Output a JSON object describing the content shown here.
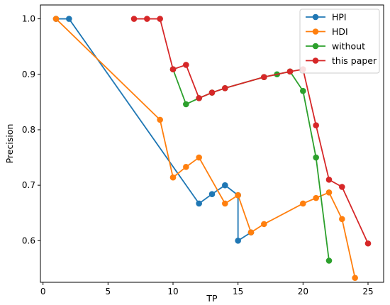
{
  "chart_data": {
    "type": "line",
    "xlabel": "TP",
    "ylabel": "Precision",
    "xlim": [
      -0.2,
      26.2
    ],
    "ylim": [
      0.525,
      1.025
    ],
    "xticks": [
      0,
      5,
      10,
      15,
      20,
      25
    ],
    "yticks": [
      0.6,
      0.7,
      0.8,
      0.9,
      1.0
    ],
    "ytick_labels": [
      "0.6",
      "0.7",
      "0.8",
      "0.9",
      "1.0"
    ],
    "grid": false,
    "legend_position": "top-right",
    "series": [
      {
        "name": "HPI",
        "color": "#1f77b4",
        "points": [
          [
            1,
            1.0
          ],
          [
            2,
            1.0
          ],
          [
            12,
            0.667
          ],
          [
            13,
            0.684
          ],
          [
            14,
            0.7
          ],
          [
            15,
            0.682
          ],
          [
            15,
            0.6
          ],
          [
            16,
            0.615
          ]
        ]
      },
      {
        "name": "HDI",
        "color": "#ff7f0e",
        "points": [
          [
            1,
            1.0
          ],
          [
            9,
            0.818
          ],
          [
            10,
            0.714
          ],
          [
            11,
            0.733
          ],
          [
            12,
            0.75
          ],
          [
            14,
            0.667
          ],
          [
            15,
            0.682
          ],
          [
            16,
            0.615
          ],
          [
            17,
            0.63
          ],
          [
            20,
            0.667
          ],
          [
            21,
            0.677
          ],
          [
            22,
            0.687
          ],
          [
            23,
            0.639
          ],
          [
            24,
            0.533
          ]
        ]
      },
      {
        "name": "without",
        "color": "#2ca02c",
        "points": [
          [
            10,
            0.909
          ],
          [
            11,
            0.846
          ],
          [
            12,
            0.857
          ],
          [
            13,
            0.867
          ],
          [
            14,
            0.875
          ],
          [
            17,
            0.895
          ],
          [
            18,
            0.9
          ],
          [
            19,
            0.905
          ],
          [
            20,
            0.87
          ],
          [
            21,
            0.75
          ],
          [
            22,
            0.564
          ]
        ]
      },
      {
        "name": "this paper",
        "color": "#d62728",
        "points": [
          [
            7,
            1.0
          ],
          [
            8,
            1.0
          ],
          [
            9,
            1.0
          ],
          [
            10,
            0.909
          ],
          [
            11,
            0.917
          ],
          [
            12,
            0.857
          ],
          [
            13,
            0.867
          ],
          [
            14,
            0.875
          ],
          [
            17,
            0.895
          ],
          [
            19,
            0.905
          ],
          [
            20,
            0.909
          ],
          [
            21,
            0.808
          ],
          [
            22,
            0.71
          ],
          [
            23,
            0.697
          ],
          [
            25,
            0.595
          ]
        ]
      }
    ]
  }
}
